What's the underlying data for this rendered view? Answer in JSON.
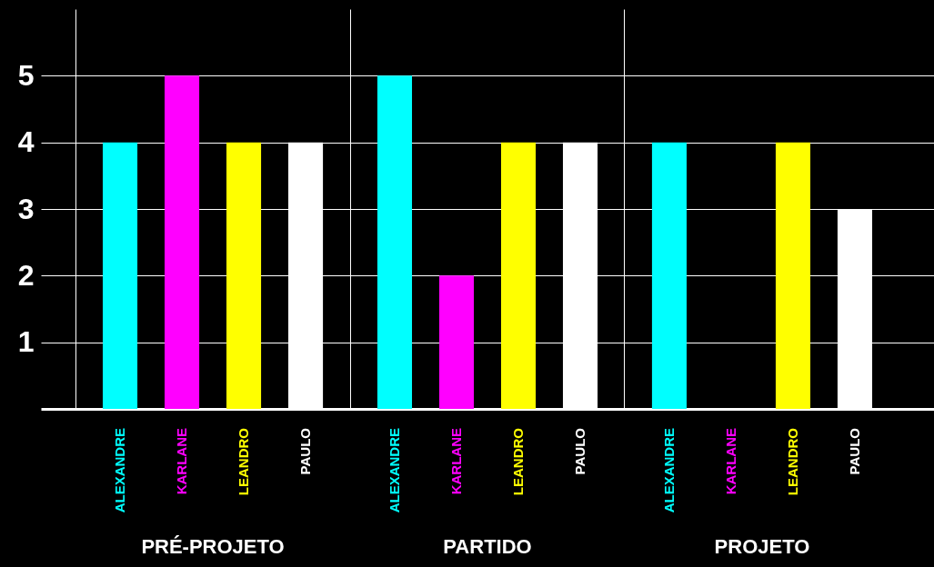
{
  "chart_data": {
    "type": "bar",
    "categories": [
      "PRÉ-PROJETO",
      "PARTIDO",
      "PROJETO"
    ],
    "series": [
      {
        "name": "ALEXANDRE",
        "color": "#00ffff",
        "values": [
          4,
          5,
          4
        ]
      },
      {
        "name": "KARLANE",
        "color": "#ff00ff",
        "values": [
          5,
          2,
          0
        ]
      },
      {
        "name": "LEANDRO",
        "color": "#ffff00",
        "values": [
          4,
          4,
          4
        ]
      },
      {
        "name": "PAULO",
        "color": "#ffffff",
        "values": [
          4,
          4,
          3
        ]
      }
    ],
    "ylim": [
      0,
      6
    ],
    "yticks": [
      1,
      2,
      3,
      4,
      5
    ],
    "grid": true
  }
}
